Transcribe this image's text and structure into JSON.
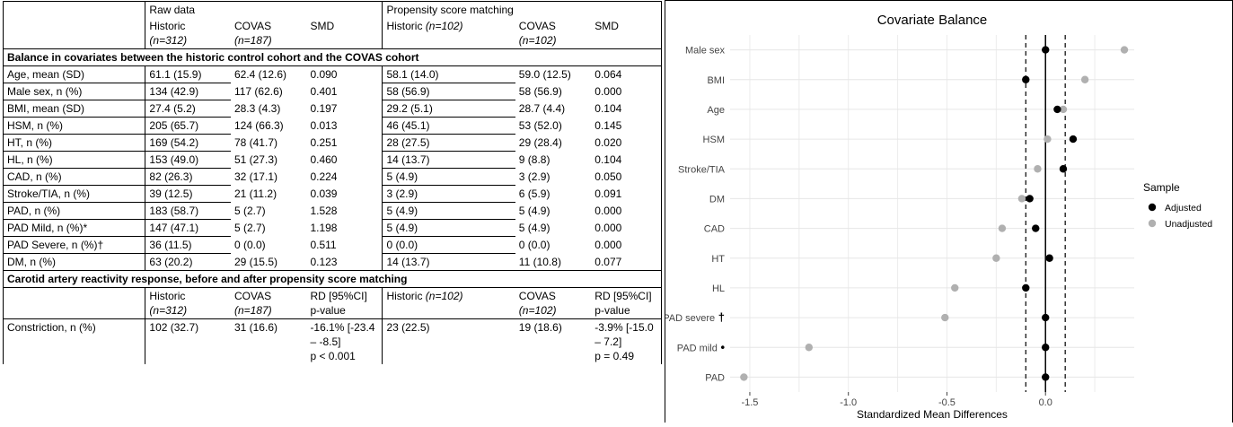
{
  "table": {
    "top_group_raw": "Raw data",
    "top_group_psm": "Propensity score matching",
    "header1": {
      "raw_historic": "Historic",
      "raw_historic_n": "(n=312)",
      "raw_covas": "COVAS",
      "raw_covas_n": "(n=187)",
      "raw_smd": "SMD",
      "psm_historic": "Historic",
      "psm_historic_n": "(n=102)",
      "psm_covas": "COVAS",
      "psm_covas_n": "(n=102)",
      "psm_smd": "SMD"
    },
    "section1": "Balance in covariates between the historic control cohort and the COVAS cohort",
    "rows": [
      [
        "Age, mean (SD)",
        "61.1 (15.9)",
        "62.4 (12.6)",
        "0.090",
        "58.1 (14.0)",
        "59.0 (12.5)",
        "0.064"
      ],
      [
        "Male sex, n (%)",
        "134 (42.9)",
        "117 (62.6)",
        "0.401",
        "58 (56.9)",
        "58 (56.9)",
        "0.000"
      ],
      [
        "BMI, mean (SD)",
        "27.4 (5.2)",
        "28.3 (4.3)",
        "0.197",
        "29.2 (5.1)",
        "28.7 (4.4)",
        "0.104"
      ],
      [
        "HSM, n (%)",
        "205 (65.7)",
        "124 (66.3)",
        "0.013",
        "46 (45.1)",
        "53 (52.0)",
        "0.145"
      ],
      [
        "HT, n (%)",
        "169 (54.2)",
        "78 (41.7)",
        "0.251",
        "28 (27.5)",
        "29 (28.4)",
        "0.020"
      ],
      [
        "HL, n (%)",
        "153 (49.0)",
        "51 (27.3)",
        "0.460",
        "14 (13.7)",
        "9 (8.8)",
        "0.104"
      ],
      [
        "CAD, n (%)",
        "82 (26.3)",
        "32 (17.1)",
        "0.224",
        "5 (4.9)",
        "3 (2.9)",
        "0.050"
      ],
      [
        "Stroke/TIA, n (%)",
        "39 (12.5)",
        "21 (11.2)",
        "0.039",
        "3 (2.9)",
        "6 (5.9)",
        "0.091"
      ],
      [
        "PAD, n (%)",
        "183 (58.7)",
        "5 (2.7)",
        "1.528",
        "5 (4.9)",
        "5 (4.9)",
        "0.000"
      ],
      [
        "PAD Mild, n (%)*",
        "147 (47.1)",
        "5 (2.7)",
        "1.198",
        "5 (4.9)",
        "5 (4.9)",
        "0.000"
      ],
      [
        "PAD Severe, n (%)†",
        "36 (11.5)",
        "0 (0.0)",
        "0.511",
        "0 (0.0)",
        "0 (0.0)",
        "0.000"
      ],
      [
        "DM, n (%)",
        "63 (20.2)",
        "29 (15.5)",
        "0.123",
        "14 (13.7)",
        "11 (10.8)",
        "0.077"
      ]
    ],
    "section2": "Carotid artery reactivity response, before and after propensity score matching",
    "header2": {
      "raw_historic": "Historic",
      "raw_historic_n": "(n=312)",
      "raw_covas": "COVAS",
      "raw_covas_n": "(n=187)",
      "raw_rd": "RD [95%CI]",
      "raw_p": "p-value",
      "psm_historic": "Historic ",
      "psm_historic_n": "(n=102)",
      "psm_covas": "COVAS",
      "psm_covas_n": "(n=102)",
      "psm_rd": "RD [95%CI]",
      "psm_p": "p-value"
    },
    "outcome": {
      "label": "Constriction, n (%)",
      "raw_historic": "102 (32.7)",
      "raw_covas": "31 (16.6)",
      "raw_rd_1": "-16.1% [-23.4",
      "raw_rd_2": "– -8.5]",
      "raw_p": "p < 0.001",
      "psm_historic": "23 (22.5)",
      "psm_covas": "19 (18.6)",
      "psm_rd_1": "-3.9% [-15.0",
      "psm_rd_2": "– 7.2]",
      "psm_p": "p = 0.49"
    }
  },
  "chart_data": {
    "type": "scatter",
    "title": "Covariate Balance",
    "xlabel": "Standardized Mean Differences",
    "ylabel": "",
    "xlim": [
      -1.6,
      0.45
    ],
    "x_ticks": [
      -1.5,
      -1.0,
      -0.5,
      0.0
    ],
    "x_tick_labels": [
      "-1.5",
      "-1.0",
      "-0.5",
      "0.0"
    ],
    "threshold_lines": [
      -0.1,
      0.1
    ],
    "zero_line": 0.0,
    "grid": true,
    "legend_position": "right",
    "categories": [
      "Male sex",
      "BMI",
      "Age",
      "HSM",
      "Stroke/TIA",
      "DM",
      "CAD",
      "HT",
      "HL",
      "PAD severe",
      "PAD mild",
      "PAD"
    ],
    "category_marks": [
      "",
      "",
      "",
      "",
      "",
      "",
      "",
      "",
      "",
      "†",
      "•",
      ""
    ],
    "series": [
      {
        "name": "Unadjusted",
        "color": "#b0b0b0",
        "values": [
          0.4,
          0.2,
          0.09,
          0.01,
          -0.04,
          -0.12,
          -0.22,
          -0.25,
          -0.46,
          -0.51,
          -1.2,
          -1.53
        ]
      },
      {
        "name": "Adjusted",
        "color": "#000000",
        "values": [
          0.0,
          -0.1,
          0.06,
          0.14,
          0.09,
          -0.08,
          -0.05,
          0.02,
          -0.1,
          0.0,
          0.0,
          0.0
        ]
      }
    ],
    "legend_title": "Sample",
    "legend": [
      "Adjusted",
      "Unadjusted"
    ]
  }
}
